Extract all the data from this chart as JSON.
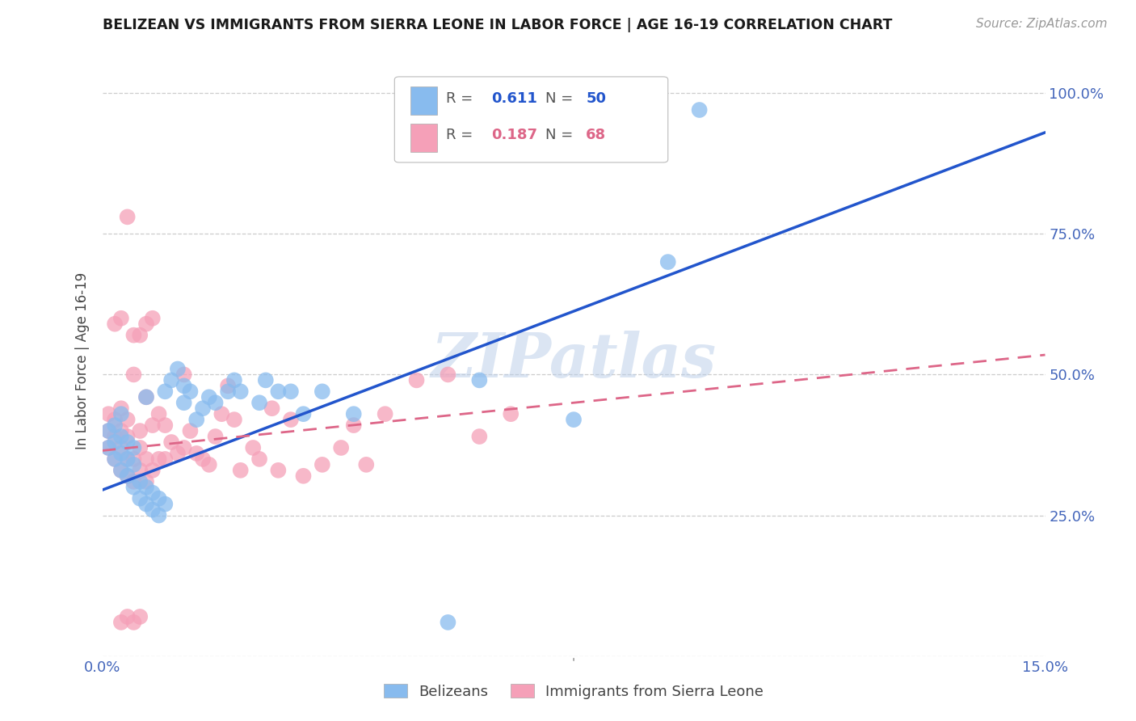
{
  "title": "BELIZEAN VS IMMIGRANTS FROM SIERRA LEONE IN LABOR FORCE | AGE 16-19 CORRELATION CHART",
  "source": "Source: ZipAtlas.com",
  "ylabel": "In Labor Force | Age 16-19",
  "xlim": [
    0.0,
    0.15
  ],
  "ylim": [
    0.0,
    1.05
  ],
  "xtick_positions": [
    0.0,
    0.05,
    0.1,
    0.15
  ],
  "xticklabels": [
    "0.0%",
    "",
    "",
    "15.0%"
  ],
  "ytick_positions": [
    0.0,
    0.25,
    0.5,
    0.75,
    1.0
  ],
  "yticklabels": [
    "",
    "25.0%",
    "50.0%",
    "75.0%",
    "100.0%"
  ],
  "blue_R": "0.611",
  "blue_N": "50",
  "pink_R": "0.187",
  "pink_N": "68",
  "blue_scatter_color": "#88bbee",
  "pink_scatter_color": "#f5a0b8",
  "blue_line_color": "#2255cc",
  "pink_line_color": "#dd6688",
  "tick_color": "#4466bb",
  "blue_line_x": [
    0.0,
    0.15
  ],
  "blue_line_y": [
    0.295,
    0.93
  ],
  "pink_line_x": [
    0.0,
    0.15
  ],
  "pink_line_y": [
    0.365,
    0.535
  ],
  "blue_scatter_x": [
    0.001,
    0.001,
    0.002,
    0.002,
    0.002,
    0.003,
    0.003,
    0.003,
    0.003,
    0.004,
    0.004,
    0.004,
    0.005,
    0.005,
    0.005,
    0.006,
    0.006,
    0.007,
    0.007,
    0.007,
    0.008,
    0.008,
    0.009,
    0.009,
    0.01,
    0.01,
    0.011,
    0.012,
    0.013,
    0.013,
    0.014,
    0.015,
    0.016,
    0.017,
    0.018,
    0.02,
    0.021,
    0.022,
    0.025,
    0.026,
    0.028,
    0.03,
    0.032,
    0.035,
    0.04,
    0.055,
    0.06,
    0.075,
    0.09,
    0.095
  ],
  "blue_scatter_y": [
    0.37,
    0.4,
    0.35,
    0.38,
    0.41,
    0.33,
    0.36,
    0.39,
    0.43,
    0.32,
    0.35,
    0.38,
    0.3,
    0.34,
    0.37,
    0.28,
    0.31,
    0.27,
    0.3,
    0.46,
    0.26,
    0.29,
    0.25,
    0.28,
    0.27,
    0.47,
    0.49,
    0.51,
    0.45,
    0.48,
    0.47,
    0.42,
    0.44,
    0.46,
    0.45,
    0.47,
    0.49,
    0.47,
    0.45,
    0.49,
    0.47,
    0.47,
    0.43,
    0.47,
    0.43,
    0.06,
    0.49,
    0.42,
    0.7,
    0.97
  ],
  "pink_scatter_x": [
    0.001,
    0.001,
    0.001,
    0.002,
    0.002,
    0.002,
    0.003,
    0.003,
    0.003,
    0.003,
    0.004,
    0.004,
    0.004,
    0.004,
    0.005,
    0.005,
    0.005,
    0.006,
    0.006,
    0.006,
    0.007,
    0.007,
    0.007,
    0.008,
    0.008,
    0.009,
    0.009,
    0.01,
    0.01,
    0.011,
    0.012,
    0.013,
    0.013,
    0.014,
    0.015,
    0.016,
    0.017,
    0.018,
    0.019,
    0.02,
    0.021,
    0.022,
    0.024,
    0.025,
    0.027,
    0.028,
    0.03,
    0.032,
    0.035,
    0.038,
    0.04,
    0.042,
    0.045,
    0.05,
    0.055,
    0.06,
    0.065,
    0.002,
    0.003,
    0.005,
    0.006,
    0.007,
    0.008,
    0.004,
    0.005,
    0.006,
    0.003,
    0.004
  ],
  "pink_scatter_y": [
    0.37,
    0.4,
    0.43,
    0.35,
    0.39,
    0.42,
    0.33,
    0.37,
    0.4,
    0.44,
    0.32,
    0.35,
    0.39,
    0.42,
    0.31,
    0.35,
    0.5,
    0.33,
    0.37,
    0.4,
    0.31,
    0.35,
    0.46,
    0.33,
    0.41,
    0.35,
    0.43,
    0.35,
    0.41,
    0.38,
    0.36,
    0.37,
    0.5,
    0.4,
    0.36,
    0.35,
    0.34,
    0.39,
    0.43,
    0.48,
    0.42,
    0.33,
    0.37,
    0.35,
    0.44,
    0.33,
    0.42,
    0.32,
    0.34,
    0.37,
    0.41,
    0.34,
    0.43,
    0.49,
    0.5,
    0.39,
    0.43,
    0.59,
    0.6,
    0.57,
    0.57,
    0.59,
    0.6,
    0.78,
    0.06,
    0.07,
    0.06,
    0.07
  ],
  "watermark": "ZIPatlas",
  "background_color": "#ffffff",
  "grid_color": "#cccccc"
}
